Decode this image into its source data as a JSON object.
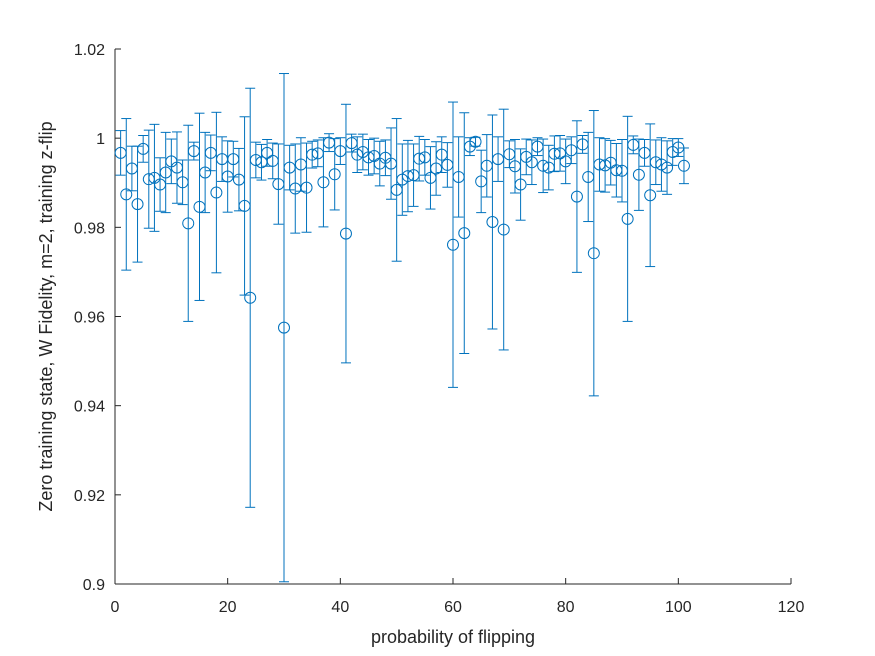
{
  "chart_data": {
    "type": "scatter",
    "xlabel": "probability of flipping",
    "ylabel": "Zero training state, W Fidelity, m=2, training z-flip",
    "xlim": [
      0,
      120
    ],
    "ylim": [
      0.9,
      1.02
    ],
    "xticks": [
      0,
      20,
      40,
      60,
      80,
      100,
      120
    ],
    "yticks": [
      0.9,
      0.92,
      0.94,
      0.96,
      0.98,
      1.0,
      1.02
    ],
    "xtick_labels": [
      "0",
      "20",
      "40",
      "60",
      "80",
      "100",
      "120"
    ],
    "ytick_labels": [
      "0.9",
      "0.92",
      "0.94",
      "0.96",
      "0.98",
      "1",
      "1.02"
    ],
    "grid": false,
    "marker": "circle",
    "error_bars": true,
    "color": "#0072BD",
    "series": [
      {
        "x": [
          1,
          2,
          3,
          4,
          5,
          6,
          7,
          8,
          9,
          10,
          11,
          12,
          13,
          14,
          15,
          16,
          17,
          18,
          19,
          20,
          21,
          22,
          23,
          24,
          25,
          26,
          27,
          28,
          29,
          30,
          31,
          32,
          33,
          34,
          35,
          36,
          37,
          38,
          39,
          40,
          41,
          42,
          43,
          44,
          45,
          46,
          47,
          48,
          49,
          50,
          51,
          52,
          53,
          54,
          55,
          56,
          57,
          58,
          59,
          60,
          61,
          62,
          63,
          64,
          65,
          66,
          67,
          68,
          69,
          70,
          71,
          72,
          73,
          74,
          75,
          76,
          77,
          78,
          79,
          80,
          81,
          82,
          83,
          84,
          85,
          86,
          87,
          88,
          89,
          90,
          91,
          92,
          93,
          94,
          95,
          96,
          97,
          98,
          99,
          100,
          101
        ],
        "y": [
          0.9967,
          0.9874,
          0.9932,
          0.9852,
          0.9976,
          0.9908,
          0.9911,
          0.9896,
          0.9923,
          0.9948,
          0.9934,
          0.9901,
          0.9809,
          0.9971,
          0.9846,
          0.9923,
          0.9967,
          0.9878,
          0.9953,
          0.9914,
          0.9953,
          0.9907,
          0.9848,
          0.9642,
          0.9951,
          0.9946,
          0.9967,
          0.9949,
          0.9897,
          0.9575,
          0.9934,
          0.9887,
          0.9941,
          0.9889,
          0.9963,
          0.9966,
          0.9901,
          0.999,
          0.9919,
          0.9971,
          0.9786,
          0.9989,
          0.9963,
          0.9969,
          0.9957,
          0.996,
          0.9943,
          0.9956,
          0.9943,
          0.9884,
          0.9907,
          0.9915,
          0.9917,
          0.9954,
          0.9957,
          0.9911,
          0.9932,
          0.9963,
          0.994,
          0.9761,
          0.9913,
          0.9787,
          0.9981,
          0.9992,
          0.9903,
          0.9938,
          0.9812,
          0.9953,
          0.9795,
          0.9964,
          0.9937,
          0.9896,
          0.9958,
          0.9946,
          0.9981,
          0.9938,
          0.9934,
          0.9965,
          0.9966,
          0.9948,
          0.9973,
          0.9869,
          0.9986,
          0.9913,
          0.9742,
          0.9941,
          0.9939,
          0.9945,
          0.9928,
          0.9927,
          0.9819,
          0.9985,
          0.9918,
          0.9967,
          0.9872,
          0.9946,
          0.9941,
          0.9934,
          0.9969,
          0.9979,
          0.9938
        ],
        "err_low": [
          0.005,
          0.017,
          0.005,
          0.013,
          0.003,
          0.011,
          0.012,
          0.006,
          0.009,
          0.005,
          0.008,
          0.005,
          0.022,
          0.002,
          0.021,
          0.009,
          0.004,
          0.018,
          0.005,
          0.008,
          0.004,
          0.007,
          0.02,
          0.047,
          0.004,
          0.004,
          0.003,
          0.004,
          0.009,
          0.057,
          0.005,
          0.01,
          0.006,
          0.01,
          0.003,
          0.003,
          0.01,
          0.002,
          0.008,
          0.003,
          0.029,
          0.002,
          0.004,
          0.004,
          0.004,
          0.004,
          0.005,
          0.004,
          0.008,
          0.016,
          0.008,
          0.008,
          0.007,
          0.005,
          0.004,
          0.007,
          0.006,
          0.004,
          0.005,
          0.032,
          0.009,
          0.027,
          0.002,
          0.001,
          0.007,
          0.007,
          0.024,
          0.005,
          0.027,
          0.003,
          0.006,
          0.008,
          0.004,
          0.005,
          0.002,
          0.006,
          0.005,
          0.004,
          0.004,
          0.005,
          0.003,
          0.017,
          0.002,
          0.01,
          0.032,
          0.006,
          0.006,
          0.005,
          0.006,
          0.007,
          0.023,
          0.002,
          0.008,
          0.003,
          0.016,
          0.005,
          0.006,
          0.006,
          0.003,
          0.002,
          0.004
        ],
        "err_high": [
          0.005,
          0.017,
          0.005,
          0.013,
          0.003,
          0.011,
          0.012,
          0.006,
          0.009,
          0.005,
          0.008,
          0.005,
          0.022,
          0.002,
          0.021,
          0.009,
          0.004,
          0.018,
          0.005,
          0.008,
          0.004,
          0.007,
          0.02,
          0.047,
          0.004,
          0.004,
          0.003,
          0.004,
          0.009,
          0.057,
          0.005,
          0.01,
          0.006,
          0.01,
          0.003,
          0.003,
          0.01,
          0.002,
          0.008,
          0.003,
          0.029,
          0.002,
          0.004,
          0.004,
          0.004,
          0.004,
          0.005,
          0.004,
          0.008,
          0.016,
          0.008,
          0.008,
          0.007,
          0.005,
          0.004,
          0.007,
          0.006,
          0.004,
          0.005,
          0.032,
          0.009,
          0.027,
          0.002,
          0.001,
          0.007,
          0.007,
          0.024,
          0.005,
          0.027,
          0.003,
          0.006,
          0.008,
          0.004,
          0.005,
          0.002,
          0.006,
          0.005,
          0.004,
          0.004,
          0.005,
          0.003,
          0.017,
          0.002,
          0.01,
          0.032,
          0.006,
          0.006,
          0.005,
          0.006,
          0.007,
          0.023,
          0.002,
          0.008,
          0.003,
          0.016,
          0.005,
          0.006,
          0.006,
          0.003,
          0.002,
          0.004
        ]
      }
    ]
  }
}
